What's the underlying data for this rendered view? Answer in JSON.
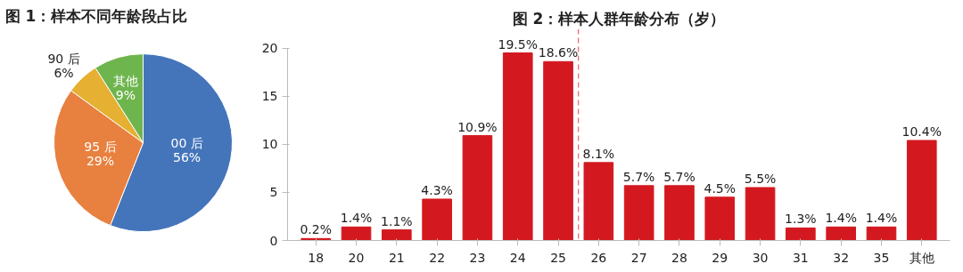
{
  "chart_data": [
    {
      "type": "pie",
      "title": "图 1：样本不同年龄段占比",
      "categories": [
        "00 后",
        "95 后",
        "90 后",
        "其他"
      ],
      "values": [
        56,
        29,
        6,
        9
      ],
      "value_labels": [
        "56%",
        "29%",
        "6%",
        "9%"
      ],
      "colors": [
        "#4475bb",
        "#e8803f",
        "#e6b032",
        "#6fb54e"
      ]
    },
    {
      "type": "bar",
      "title": "图 2：样本人群年龄分布（岁）",
      "categories": [
        "18",
        "20",
        "21",
        "22",
        "23",
        "24",
        "25",
        "26",
        "27",
        "28",
        "29",
        "30",
        "31",
        "32",
        "35",
        "其他"
      ],
      "values": [
        0.2,
        1.4,
        1.1,
        4.3,
        10.9,
        19.5,
        18.6,
        8.1,
        5.7,
        5.7,
        4.5,
        5.5,
        1.3,
        1.4,
        1.4,
        10.4
      ],
      "value_labels": [
        "0.2%",
        "1.4%",
        "1.1%",
        "4.3%",
        "10.9%",
        "19.5%",
        "18.6%",
        "8.1%",
        "5.7%",
        "5.7%",
        "4.5%",
        "5.5%",
        "1.3%",
        "1.4%",
        "1.4%",
        "10.4%"
      ],
      "color": "#d3191f",
      "ylim": [
        0,
        20
      ],
      "yticks": [
        0,
        5,
        10,
        15,
        20
      ],
      "grid": false,
      "ref_lines": [
        {
          "axis": "x",
          "value": "25",
          "color": "#e8606a",
          "line_style": "dashed"
        }
      ]
    }
  ]
}
